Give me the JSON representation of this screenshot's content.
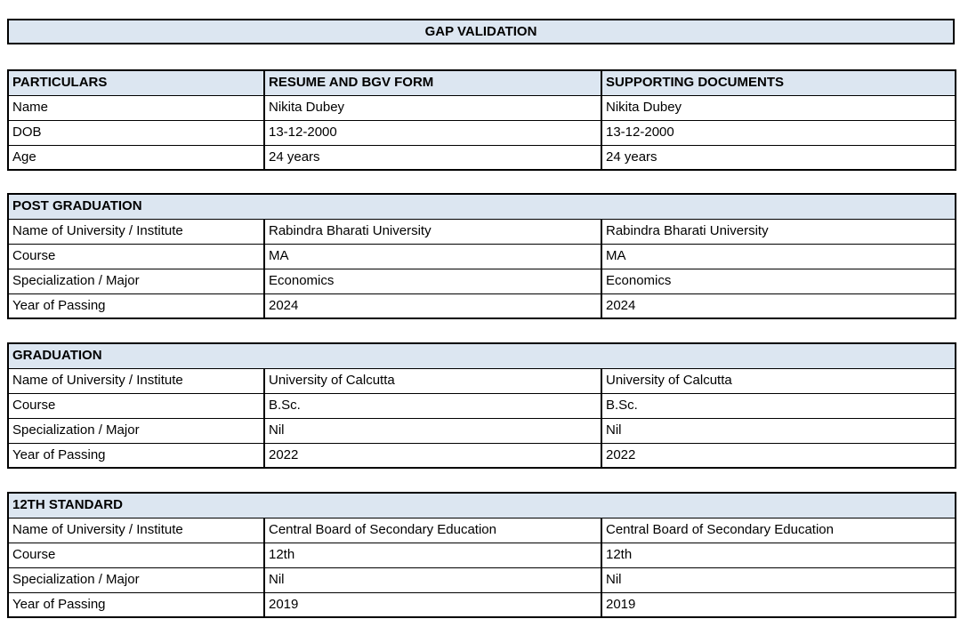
{
  "title": "GAP VALIDATION",
  "colors": {
    "fill": "#dce6f1",
    "border": "#000000",
    "text": "#000000",
    "background": "#ffffff"
  },
  "columns": [
    "PARTICULARS",
    "RESUME AND BGV FORM",
    "SUPPORTING DOCUMENTS"
  ],
  "particulars_table": {
    "rows": [
      {
        "label": "Name",
        "resume": "Nikita Dubey",
        "supporting": "Nikita Dubey"
      },
      {
        "label": "DOB",
        "resume": "13-12-2000",
        "supporting": "13-12-2000"
      },
      {
        "label": "Age",
        "resume": "24 years",
        "supporting": "24 years"
      }
    ]
  },
  "sections": [
    {
      "heading": "POST GRADUATION",
      "rows": [
        {
          "label": "Name of University / Institute",
          "resume": "Rabindra Bharati University",
          "supporting": "Rabindra Bharati University"
        },
        {
          "label": "Course",
          "resume": "MA",
          "supporting": "MA"
        },
        {
          "label": "Specialization / Major",
          "resume": "Economics",
          "supporting": "Economics"
        },
        {
          "label": "Year of Passing",
          "resume": "2024",
          "supporting": "2024"
        }
      ]
    },
    {
      "heading": "GRADUATION",
      "rows": [
        {
          "label": "Name of University / Institute",
          "resume": "University of Calcutta",
          "supporting": "University of Calcutta"
        },
        {
          "label": "Course",
          "resume": "B.Sc.",
          "supporting": "B.Sc."
        },
        {
          "label": "Specialization / Major",
          "resume": "Nil",
          "supporting": "Nil"
        },
        {
          "label": "Year of Passing",
          "resume": "2022",
          "supporting": "2022"
        }
      ]
    },
    {
      "heading": "12TH STANDARD",
      "rows": [
        {
          "label": "Name of University / Institute",
          "resume": "Central Board of Secondary Education",
          "supporting": "Central Board of Secondary Education"
        },
        {
          "label": "Course",
          "resume": "12th",
          "supporting": "12th"
        },
        {
          "label": "Specialization / Major",
          "resume": "Nil",
          "supporting": "Nil"
        },
        {
          "label": "Year of Passing",
          "resume": "2019",
          "supporting": "2019"
        }
      ]
    }
  ]
}
